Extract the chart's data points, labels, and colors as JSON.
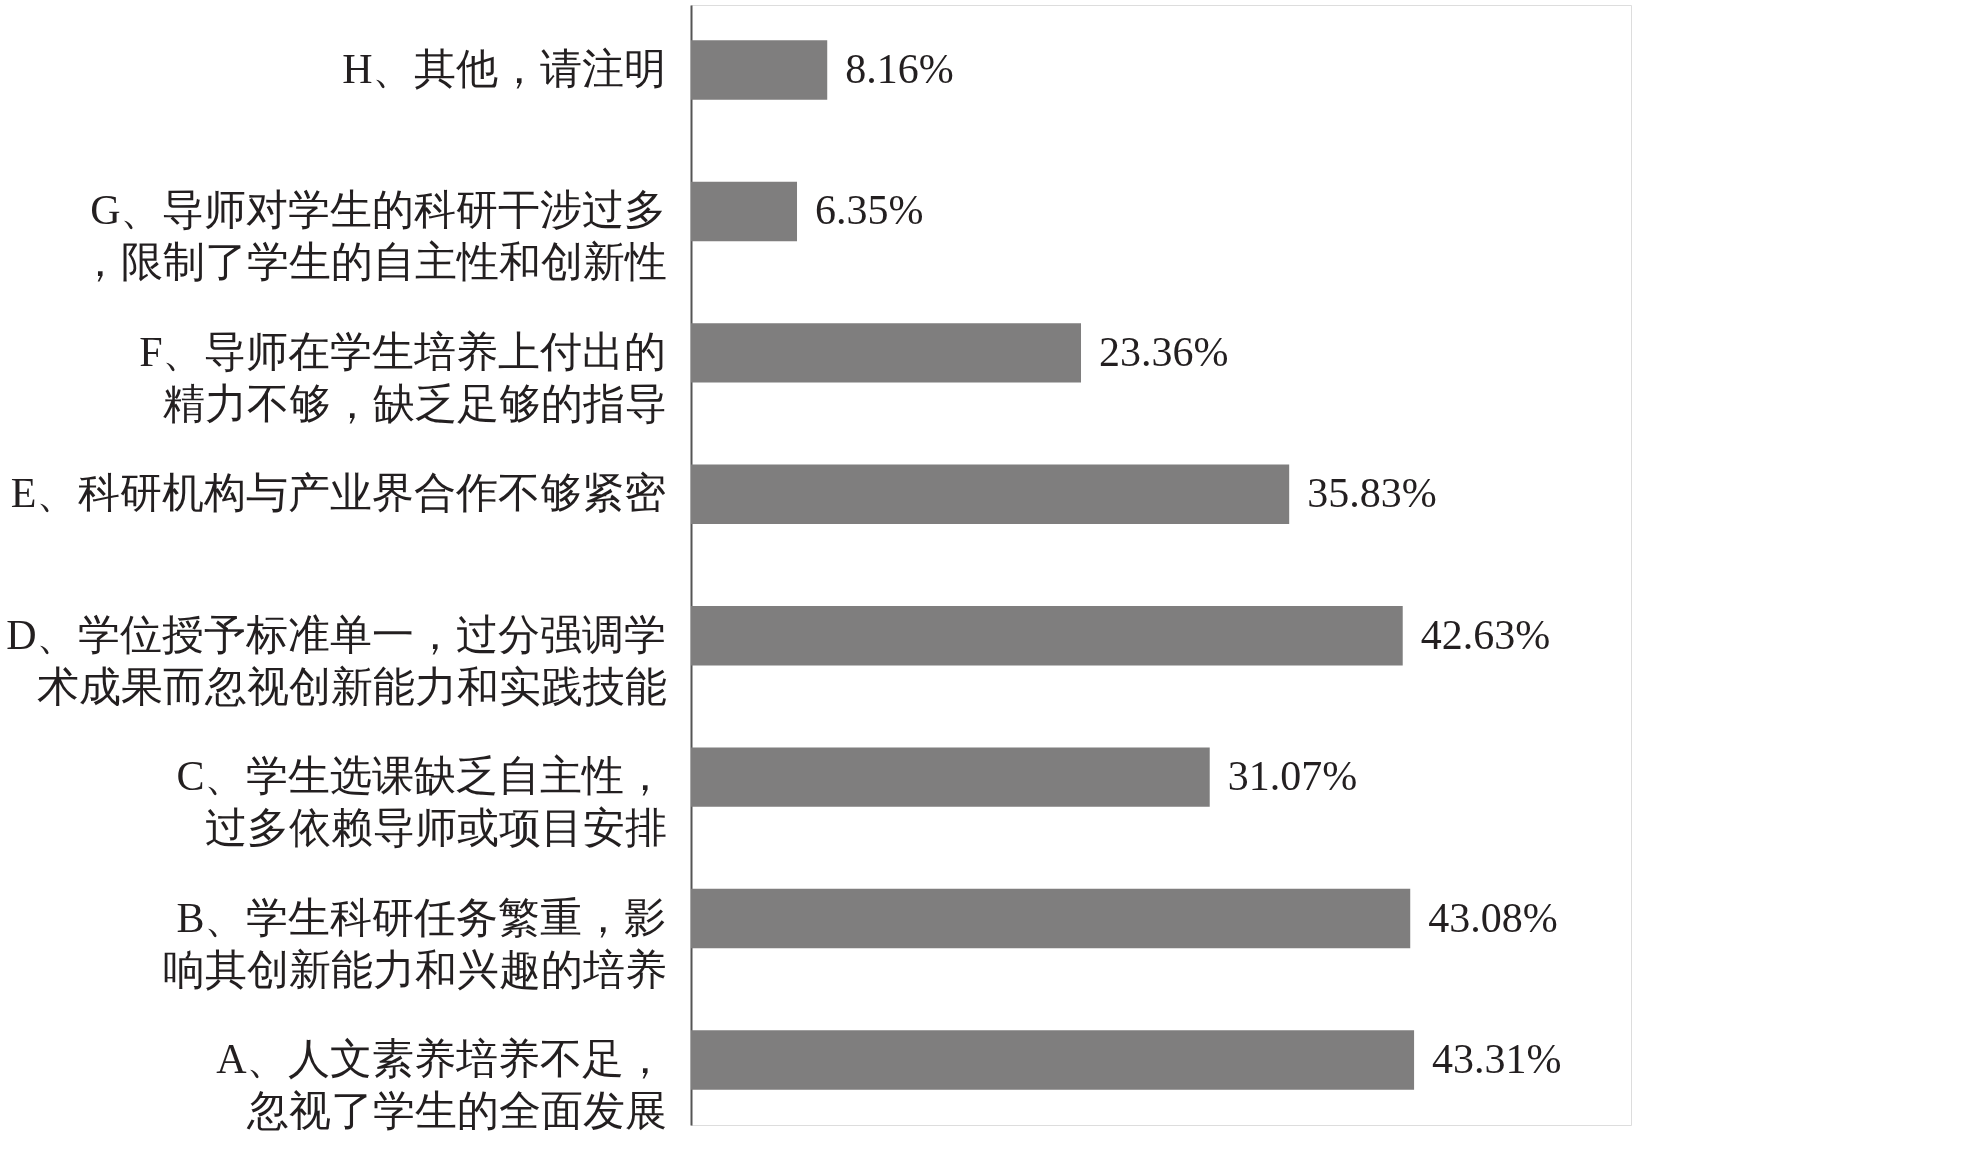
{
  "chart_data": {
    "type": "bar",
    "orientation": "horizontal",
    "categories": [
      "H、其他，请注明",
      "G、导师对学生的科研干涉过多，限制了学生的自主性和创新性",
      "F、导师在学生培养上付出的精力不够，缺乏足够的指导",
      "E、科研机构与产业界合作不够紧密",
      "D、学位授予标准单一，过分强调学术成果而忽视创新能力和实践技能",
      "C、学生选课缺乏自主性，过多依赖导师或项目安排",
      "B、学生科研任务繁重，影响其创新能力和兴趣的培养",
      "A、人文素养培养不足，忽视了学生的全面发展"
    ],
    "values": [
      8.16,
      6.35,
      23.36,
      35.83,
      42.63,
      31.07,
      43.08,
      43.31
    ],
    "value_labels": [
      "8.16%",
      "6.35%",
      "23.36%",
      "35.83%",
      "42.63%",
      "31.07%",
      "43.08%",
      "43.31%"
    ],
    "color": "#7f7e7e",
    "grid": false
  }
}
